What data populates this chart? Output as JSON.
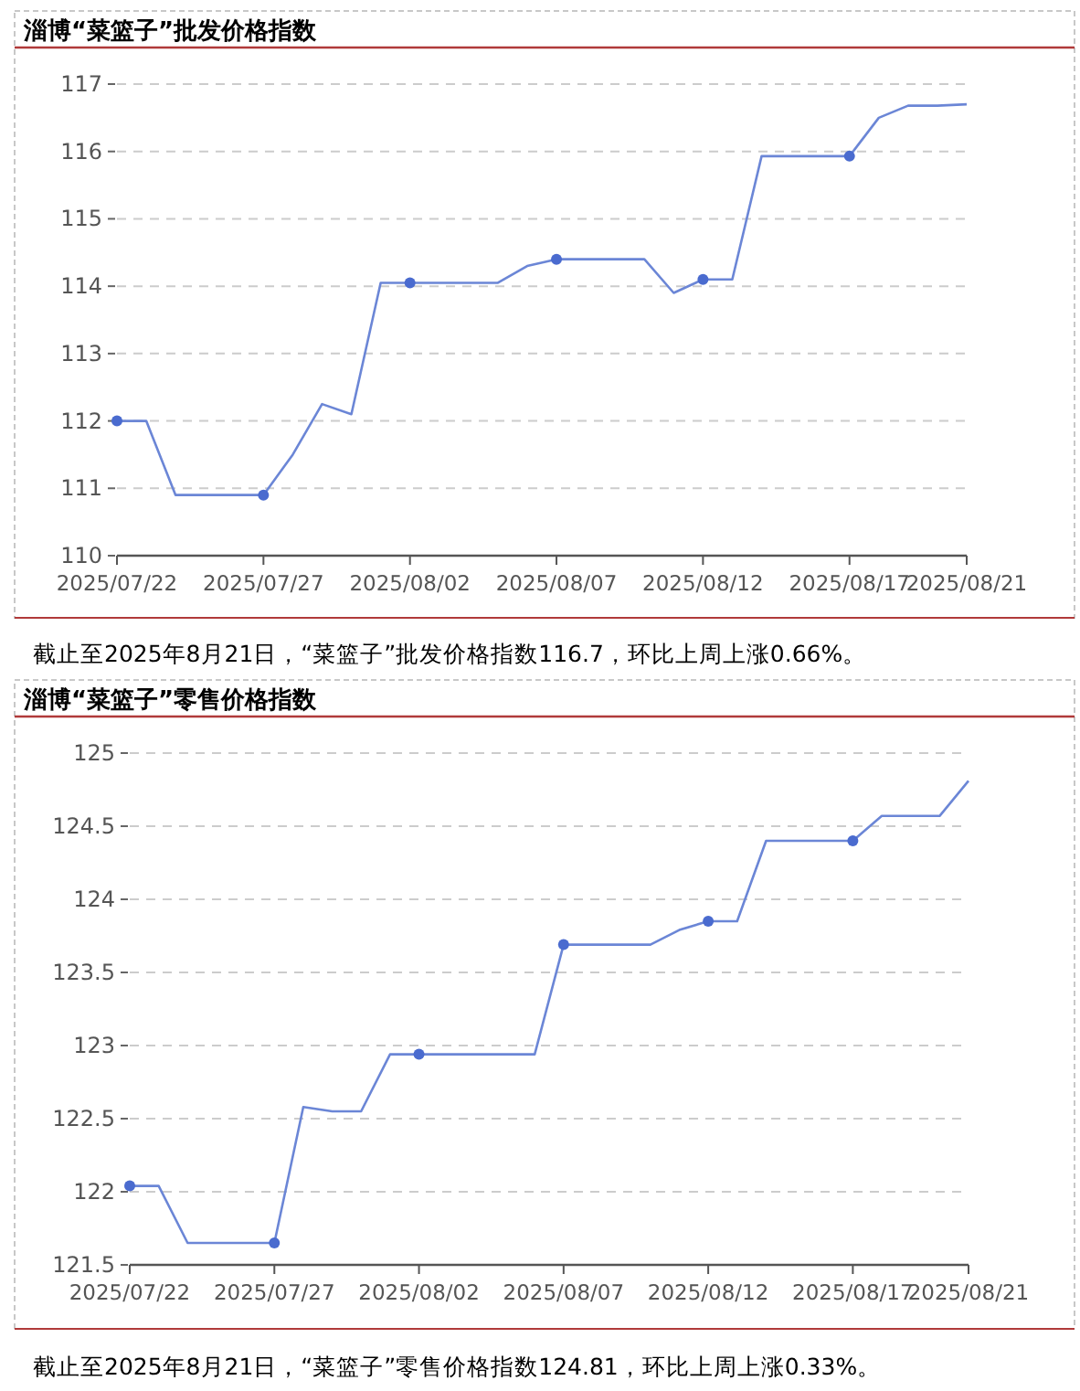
{
  "chart_data": [
    {
      "type": "line",
      "title": "淄博“菜篮子”批发价格指数",
      "categories": [
        "2025/07/22",
        null,
        null,
        null,
        null,
        "2025/07/27",
        null,
        null,
        null,
        null,
        "2025/08/02",
        null,
        null,
        null,
        null,
        "2025/08/07",
        null,
        null,
        null,
        null,
        "2025/08/12",
        null,
        null,
        null,
        null,
        "2025/08/17",
        null,
        null,
        null,
        "2025/08/21"
      ],
      "series": [
        {
          "color": "#6b86d6",
          "values": [
            112.0,
            112.0,
            110.9,
            110.9,
            110.9,
            110.9,
            111.5,
            112.25,
            112.1,
            114.05,
            114.05,
            114.05,
            114.05,
            114.05,
            114.3,
            114.4,
            114.4,
            114.4,
            114.4,
            113.9,
            114.1,
            114.1,
            115.93,
            115.93,
            115.93,
            115.93,
            116.5,
            116.68,
            116.68,
            116.7
          ]
        }
      ],
      "ylim": [
        110,
        117
      ],
      "yticks": [
        110,
        111,
        112,
        113,
        114,
        115,
        116,
        117
      ],
      "grid": "y",
      "line_style": "solid",
      "annotations": [
        "截止至2025年8月21日，“菜篮子”批发价格指数116.7，环比上周上涨0.66%。"
      ]
    },
    {
      "type": "line",
      "title": "淄博“菜篮子”零售价格指数",
      "categories": [
        "2025/07/22",
        null,
        null,
        null,
        null,
        "2025/07/27",
        null,
        null,
        null,
        null,
        "2025/08/02",
        null,
        null,
        null,
        null,
        "2025/08/07",
        null,
        null,
        null,
        null,
        "2025/08/12",
        null,
        null,
        null,
        null,
        "2025/08/17",
        null,
        null,
        null,
        "2025/08/21"
      ],
      "series": [
        {
          "color": "#6b86d6",
          "values": [
            122.04,
            122.04,
            121.65,
            121.65,
            121.65,
            121.65,
            122.58,
            122.55,
            122.55,
            122.94,
            122.94,
            122.94,
            122.94,
            122.94,
            122.94,
            123.69,
            123.69,
            123.69,
            123.69,
            123.79,
            123.85,
            123.85,
            124.4,
            124.4,
            124.4,
            124.4,
            124.57,
            124.57,
            124.57,
            124.81
          ]
        }
      ],
      "ylim": [
        121.5,
        125
      ],
      "yticks": [
        {
          "value": 121.5,
          "label": "121.5"
        },
        122,
        {
          "value": 122.5,
          "label": "122.5"
        },
        123,
        {
          "value": 123.5,
          "label": "123.5"
        },
        124,
        {
          "value": 124.5,
          "label": "124.5"
        },
        125
      ],
      "grid": "y",
      "line_style": "solid",
      "annotations": [
        "截止至2025年8月21日，“菜篮子”零售价格指数124.81，环比上周上涨0.33%。"
      ]
    }
  ]
}
